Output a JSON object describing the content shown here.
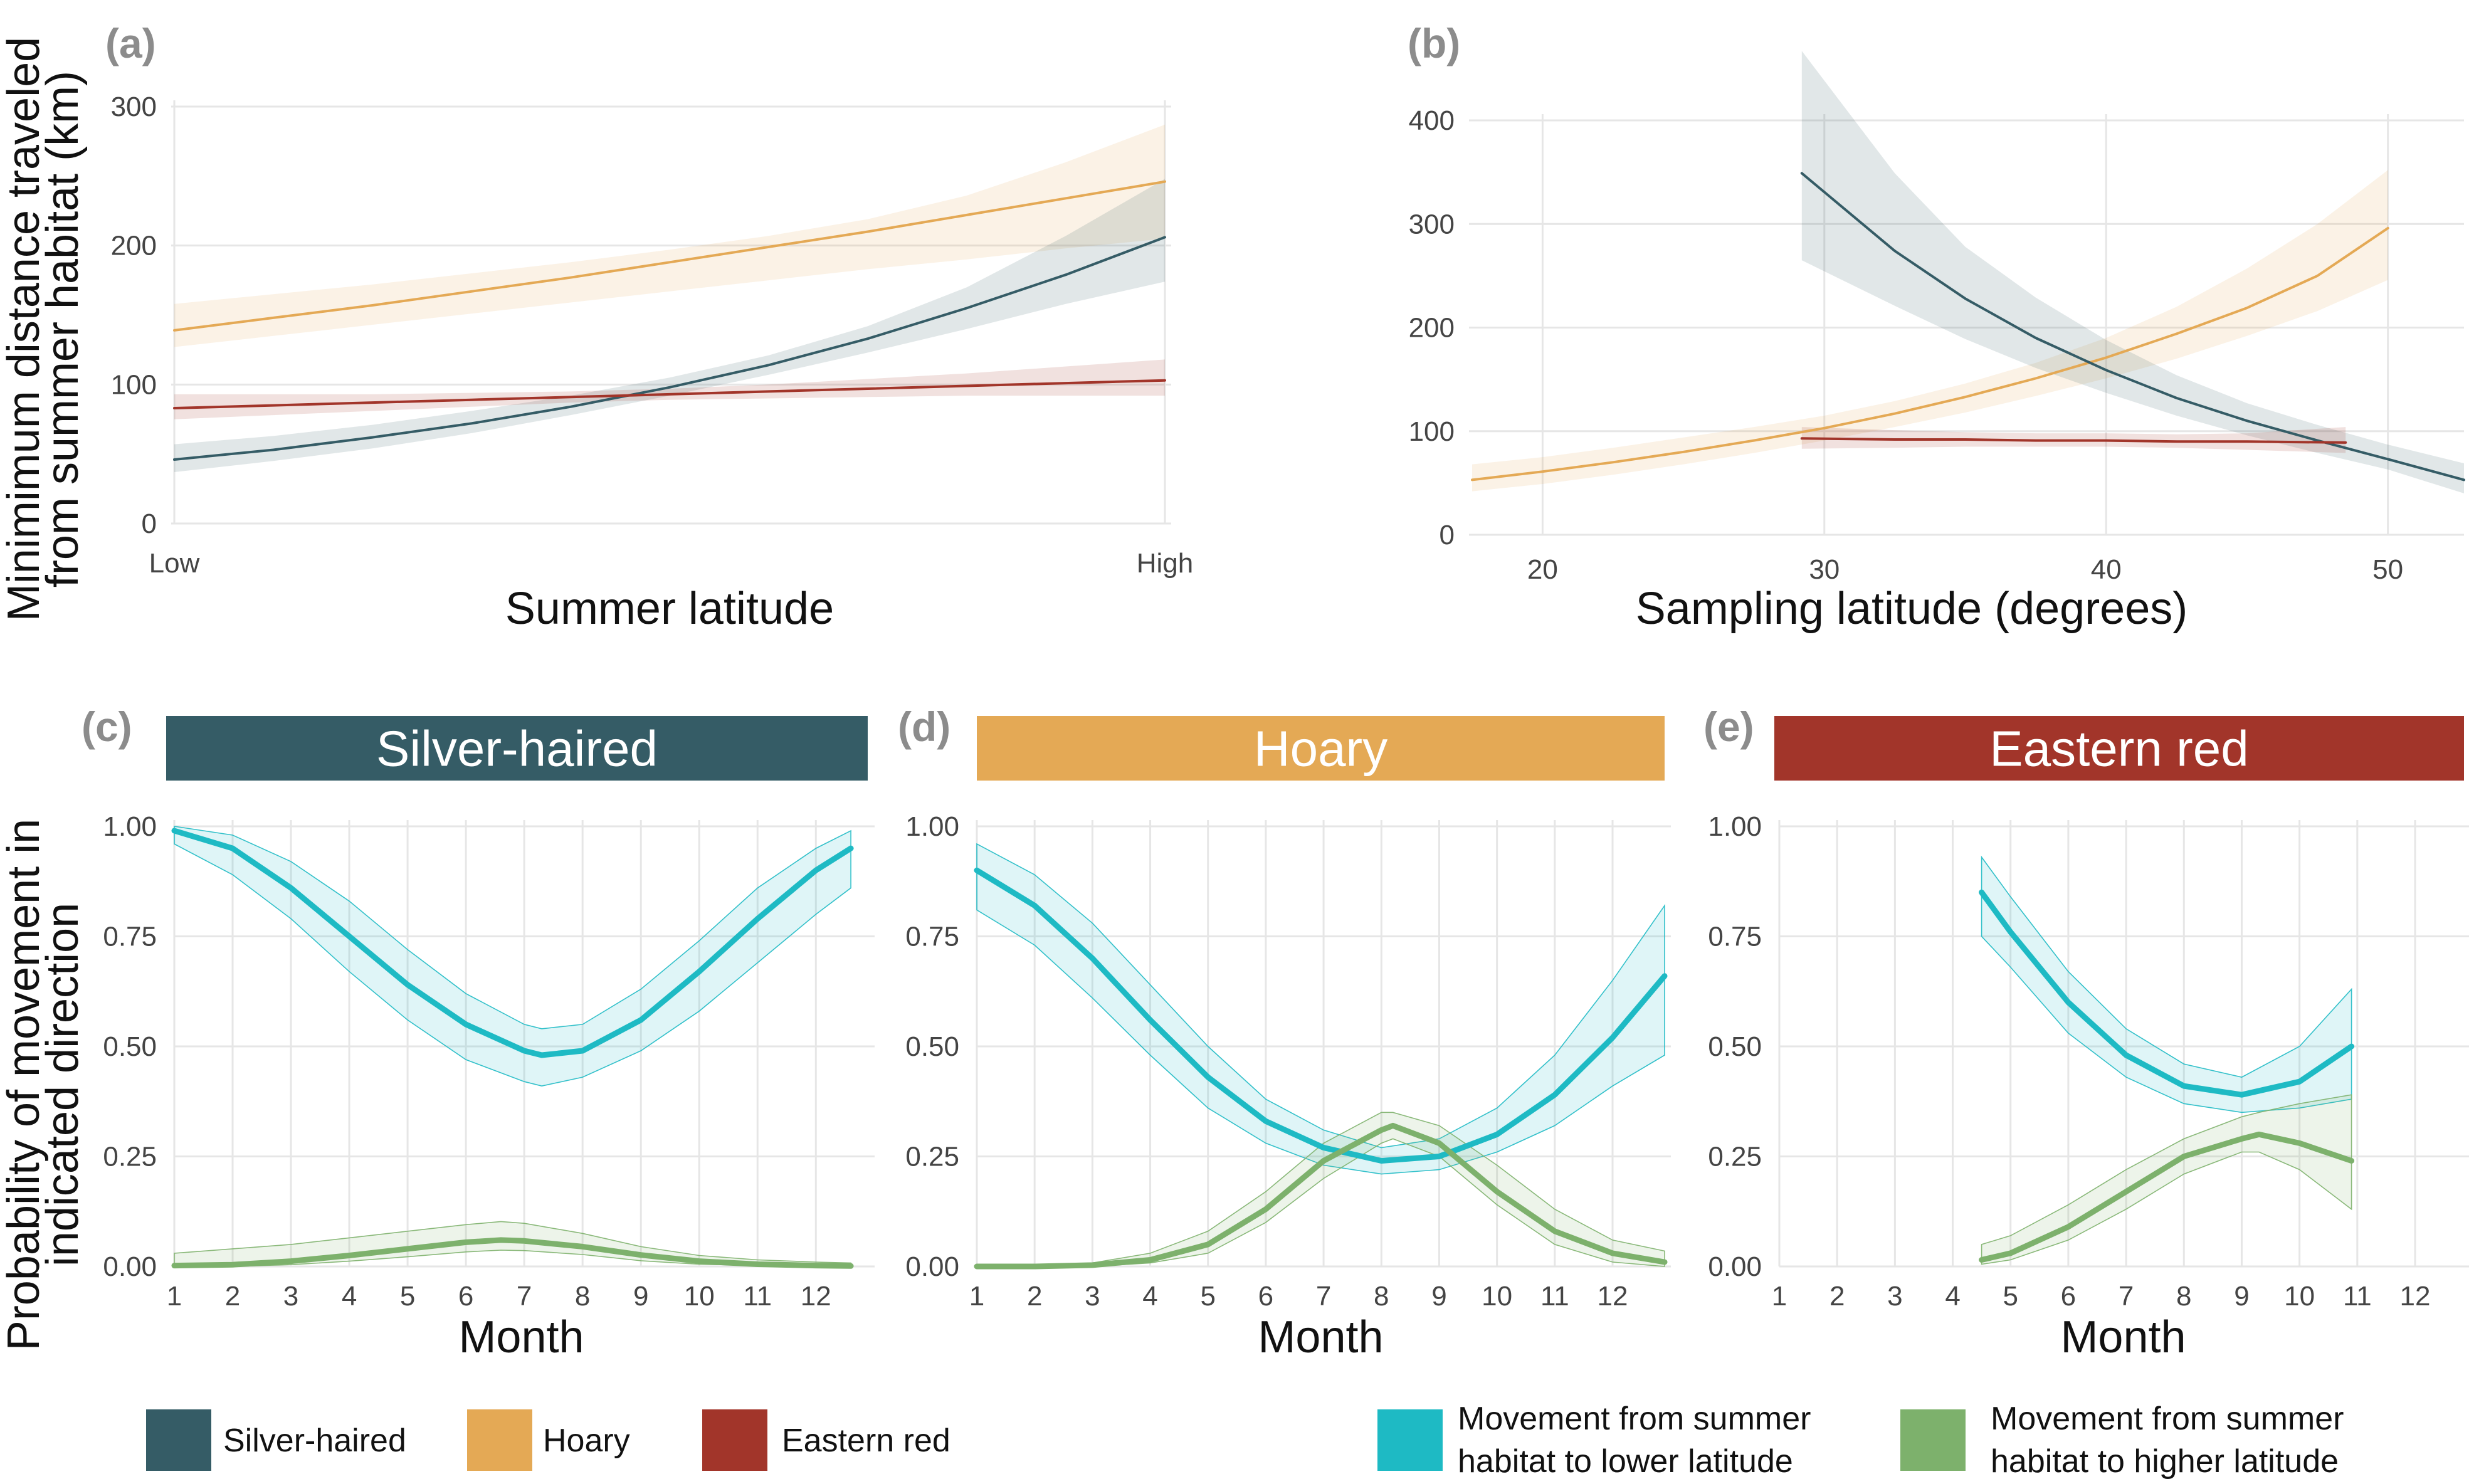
{
  "colors": {
    "silver": "#355c66",
    "hoary": "#e4a955",
    "red": "#a2352a",
    "lower": "#1ebac4",
    "higher": "#7db16c"
  },
  "figure": {
    "y_title_top": "Minimimum distance traveled\nfrom summer habitat (km)",
    "y_title_bottom": "Probability of movement in\nindicated direction"
  },
  "chart_data": [
    {
      "panel": "(a)",
      "type": "line",
      "xlabel": "Summer latitude",
      "x_tick_labels": [
        "Low",
        "High"
      ],
      "ylim": [
        0,
        300
      ],
      "y_ticks": [
        0,
        100,
        200,
        300
      ],
      "grid": true,
      "x": [
        0,
        0.1,
        0.2,
        0.3,
        0.4,
        0.5,
        0.6,
        0.7,
        0.8,
        0.9,
        1.0
      ],
      "series": [
        {
          "name": "Hoary",
          "values": [
            139,
            148,
            157,
            167,
            177,
            188,
            199,
            210,
            222,
            234,
            246
          ],
          "lower": [
            127,
            135,
            143,
            151,
            159,
            167,
            175,
            183,
            190,
            198,
            205
          ],
          "upper": [
            158,
            165,
            172,
            180,
            188,
            197,
            207,
            219,
            236,
            260,
            287
          ]
        },
        {
          "name": "Silver-haired",
          "values": [
            46,
            53,
            62,
            72,
            84,
            98,
            114,
            133,
            155,
            179,
            206
          ],
          "lower": [
            37,
            45,
            54,
            65,
            78,
            92,
            107,
            123,
            140,
            158,
            174
          ],
          "upper": [
            57,
            63,
            71,
            81,
            92,
            105,
            121,
            142,
            170,
            207,
            248
          ]
        },
        {
          "name": "Eastern red",
          "values": [
            83,
            85,
            87,
            89,
            91,
            93,
            95,
            97,
            99,
            101,
            103
          ],
          "lower": [
            75,
            78,
            81,
            84,
            87,
            89,
            90,
            91,
            92,
            92,
            92
          ],
          "upper": [
            93,
            93,
            93,
            94,
            95,
            97,
            100,
            104,
            108,
            113,
            118
          ]
        }
      ]
    },
    {
      "panel": "(b)",
      "type": "line",
      "xlabel": "Sampling latitude (degrees)",
      "xlim": [
        17.5,
        52.7
      ],
      "x_ticks": [
        20,
        30,
        40,
        50
      ],
      "ylim": [
        0,
        400
      ],
      "y_ticks": [
        0,
        100,
        200,
        300,
        400
      ],
      "grid": true,
      "series": [
        {
          "name": "Hoary",
          "x": [
            17.5,
            20,
            22.5,
            25,
            27.5,
            30,
            32.5,
            35,
            37.5,
            40,
            42.5,
            45,
            47.5,
            50
          ],
          "values": [
            53,
            61,
            70,
            80,
            91,
            103,
            117,
            133,
            151,
            171,
            194,
            219,
            250,
            296
          ],
          "lower": [
            42,
            49,
            58,
            68,
            79,
            91,
            104,
            118,
            134,
            151,
            170,
            192,
            216,
            246
          ],
          "upper": [
            68,
            75,
            84,
            94,
            104,
            115,
            129,
            146,
            166,
            190,
            220,
            257,
            300,
            352
          ]
        },
        {
          "name": "Silver-haired",
          "x": [
            29.2,
            32.5,
            35,
            37.5,
            40,
            42.5,
            45,
            47.5,
            50,
            52.7
          ],
          "values": [
            349,
            274,
            228,
            190,
            159,
            132,
            110,
            91,
            73,
            53
          ],
          "lower": [
            265,
            221,
            189,
            161,
            137,
            115,
            96,
            79,
            63,
            40
          ],
          "upper": [
            467,
            349,
            278,
            229,
            188,
            154,
            127,
            106,
            87,
            69
          ]
        },
        {
          "name": "Eastern red",
          "x": [
            29.2,
            32.5,
            35,
            37.5,
            40,
            42.5,
            45,
            48.5
          ],
          "values": [
            93,
            92,
            92,
            91,
            91,
            90,
            90,
            89
          ],
          "lower": [
            83,
            84,
            85,
            85,
            85,
            84,
            82,
            79
          ],
          "upper": [
            104,
            101,
            99,
            98,
            98,
            97,
            98,
            104
          ]
        }
      ]
    },
    {
      "panel": "(c)",
      "strip": "Silver-haired",
      "type": "line",
      "xlabel": "Month",
      "x_ticks": [
        1,
        2,
        3,
        4,
        5,
        6,
        7,
        8,
        9,
        10,
        11,
        12
      ],
      "xlim": [
        1,
        12.9
      ],
      "ylim": [
        0,
        1
      ],
      "y_tick_labels": [
        "0.00",
        "0.25",
        "0.50",
        "0.75",
        "1.00"
      ],
      "grid": true,
      "series": [
        {
          "name": "Movement from summer habitat to lower latitude",
          "x": [
            1,
            2,
            3,
            4,
            5,
            6,
            7,
            7.3,
            8,
            9,
            10,
            11,
            12,
            12.6
          ],
          "values": [
            0.99,
            0.95,
            0.86,
            0.75,
            0.64,
            0.55,
            0.49,
            0.48,
            0.49,
            0.56,
            0.67,
            0.79,
            0.9,
            0.95
          ],
          "lower": [
            0.96,
            0.89,
            0.79,
            0.67,
            0.56,
            0.47,
            0.42,
            0.41,
            0.43,
            0.49,
            0.58,
            0.69,
            0.8,
            0.86
          ],
          "upper": [
            1.0,
            0.98,
            0.92,
            0.83,
            0.72,
            0.62,
            0.55,
            0.54,
            0.55,
            0.63,
            0.74,
            0.86,
            0.95,
            0.99
          ]
        },
        {
          "name": "Movement from summer habitat to higher latitude",
          "x": [
            1,
            2,
            3,
            4,
            5,
            6,
            6.6,
            7,
            8,
            9,
            10,
            11,
            12,
            12.6
          ],
          "values": [
            0.002,
            0.004,
            0.012,
            0.025,
            0.04,
            0.055,
            0.06,
            0.058,
            0.045,
            0.026,
            0.012,
            0.005,
            0.002,
            0.001
          ],
          "lower": [
            0,
            0,
            0.004,
            0.012,
            0.022,
            0.033,
            0.037,
            0.036,
            0.027,
            0.013,
            0.005,
            0.002,
            0.001,
            0
          ],
          "upper": [
            0.03,
            0.04,
            0.05,
            0.065,
            0.08,
            0.095,
            0.102,
            0.098,
            0.075,
            0.045,
            0.025,
            0.015,
            0.01,
            0.008
          ]
        }
      ]
    },
    {
      "panel": "(d)",
      "strip": "Hoary",
      "type": "line",
      "xlabel": "Month",
      "x_ticks": [
        1,
        2,
        3,
        4,
        5,
        6,
        7,
        8,
        9,
        10,
        11,
        12
      ],
      "xlim": [
        1,
        12.9
      ],
      "ylim": [
        0,
        1
      ],
      "y_tick_labels": [
        "0.00",
        "0.25",
        "0.50",
        "0.75",
        "1.00"
      ],
      "grid": true,
      "series": [
        {
          "name": "Movement from summer habitat to lower latitude",
          "x": [
            1,
            2,
            3,
            4,
            5,
            6,
            7,
            8,
            9,
            10,
            11,
            12,
            12.9
          ],
          "values": [
            0.9,
            0.82,
            0.7,
            0.56,
            0.43,
            0.33,
            0.27,
            0.24,
            0.25,
            0.3,
            0.39,
            0.52,
            0.66
          ],
          "lower": [
            0.81,
            0.73,
            0.61,
            0.48,
            0.36,
            0.28,
            0.23,
            0.21,
            0.22,
            0.26,
            0.32,
            0.41,
            0.48
          ],
          "upper": [
            0.96,
            0.89,
            0.78,
            0.64,
            0.5,
            0.38,
            0.31,
            0.27,
            0.29,
            0.36,
            0.48,
            0.65,
            0.82
          ]
        },
        {
          "name": "Movement from summer habitat to higher latitude",
          "x": [
            1,
            2,
            3,
            4,
            5,
            6,
            7,
            8,
            8.2,
            9,
            10,
            11,
            12,
            12.9
          ],
          "values": [
            0.0,
            0.0,
            0.003,
            0.015,
            0.05,
            0.13,
            0.24,
            0.31,
            0.32,
            0.28,
            0.17,
            0.08,
            0.03,
            0.01
          ],
          "lower": [
            0.0,
            0.0,
            0.0,
            0.008,
            0.03,
            0.1,
            0.2,
            0.28,
            0.29,
            0.25,
            0.14,
            0.05,
            0.01,
            0.0
          ],
          "upper": [
            0.0,
            0.002,
            0.008,
            0.03,
            0.08,
            0.17,
            0.28,
            0.35,
            0.35,
            0.32,
            0.23,
            0.13,
            0.06,
            0.035
          ]
        }
      ]
    },
    {
      "panel": "(e)",
      "strip": "Eastern red",
      "type": "line",
      "xlabel": "Month",
      "x_ticks": [
        1,
        2,
        3,
        4,
        5,
        6,
        7,
        8,
        9,
        10,
        11,
        12
      ],
      "xlim": [
        1,
        12.9
      ],
      "ylim": [
        0,
        1
      ],
      "y_tick_labels": [
        "0.00",
        "0.25",
        "0.50",
        "0.75",
        "1.00"
      ],
      "grid": true,
      "series": [
        {
          "name": "Movement from summer habitat to lower latitude",
          "x": [
            4.5,
            5,
            6,
            7,
            8,
            9,
            10,
            10.9
          ],
          "values": [
            0.85,
            0.76,
            0.6,
            0.48,
            0.41,
            0.39,
            0.42,
            0.5
          ],
          "lower": [
            0.75,
            0.68,
            0.53,
            0.43,
            0.37,
            0.35,
            0.36,
            0.38
          ],
          "upper": [
            0.93,
            0.84,
            0.67,
            0.54,
            0.46,
            0.43,
            0.5,
            0.63
          ]
        },
        {
          "name": "Movement from summer habitat to higher latitude",
          "x": [
            4.5,
            5,
            6,
            7,
            8,
            9,
            9.3,
            10,
            10.9
          ],
          "values": [
            0.015,
            0.03,
            0.09,
            0.17,
            0.25,
            0.29,
            0.3,
            0.28,
            0.24
          ],
          "lower": [
            0.005,
            0.015,
            0.06,
            0.13,
            0.21,
            0.26,
            0.26,
            0.22,
            0.13
          ],
          "upper": [
            0.05,
            0.07,
            0.14,
            0.22,
            0.29,
            0.34,
            0.35,
            0.37,
            0.39
          ]
        }
      ]
    }
  ],
  "legend": {
    "species": [
      {
        "label": "Silver-haired",
        "color_key": "silver"
      },
      {
        "label": "Hoary",
        "color_key": "hoary"
      },
      {
        "label": "Eastern red",
        "color_key": "red"
      }
    ],
    "direction": [
      {
        "line1": "Movement from summer",
        "line2": "habitat to lower latitude",
        "color_key": "lower"
      },
      {
        "line1": "Movement from summer",
        "line2": "habitat to higher latitude",
        "color_key": "higher"
      }
    ]
  }
}
